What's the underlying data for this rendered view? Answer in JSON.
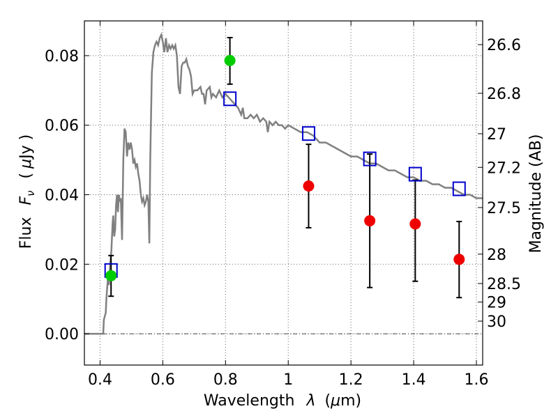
{
  "chart_data": {
    "type": "scatter",
    "title": "",
    "xlabel": {
      "prefix": "Wavelength",
      "symbol": "λ",
      "unit_open": "(",
      "unit_mu": "μ",
      "unit_rest": "m)"
    },
    "ylabel": {
      "prefix": "Flux",
      "symbol": "F",
      "subscript": "ν",
      "unit_open": "(",
      "unit_mu": "μ",
      "unit_rest": "Jy )"
    },
    "y2label": "Magnitude (AB)",
    "xlim": [
      0.35,
      1.62
    ],
    "ylim": [
      -0.009,
      0.09
    ],
    "grid": true,
    "x_ticks": [
      {
        "value": 0.4,
        "label": "0.4"
      },
      {
        "value": 0.6,
        "label": "0.6"
      },
      {
        "value": 0.8,
        "label": "0.8"
      },
      {
        "value": 1.0,
        "label": "1"
      },
      {
        "value": 1.2,
        "label": "1.2"
      },
      {
        "value": 1.4,
        "label": "1.4"
      },
      {
        "value": 1.6,
        "label": "1.6"
      }
    ],
    "y_ticks": [
      {
        "value": 0.0,
        "label": "0.00"
      },
      {
        "value": 0.02,
        "label": "0.02"
      },
      {
        "value": 0.04,
        "label": "0.04"
      },
      {
        "value": 0.06,
        "label": "0.06"
      },
      {
        "value": 0.08,
        "label": "0.08"
      }
    ],
    "mag_ticks": [
      {
        "value": 26.6,
        "label": "26.6"
      },
      {
        "value": 26.8,
        "label": "26.8"
      },
      {
        "value": 27.0,
        "label": "27"
      },
      {
        "value": 27.2,
        "label": "27.2"
      },
      {
        "value": 27.5,
        "label": "27.5"
      },
      {
        "value": 28.0,
        "label": "28"
      },
      {
        "value": 28.5,
        "label": "28.5"
      },
      {
        "value": 29.0,
        "label": "29"
      },
      {
        "value": 30.0,
        "label": "30"
      }
    ],
    "mag_zero_point": 23.9,
    "model_spectrum": {
      "color": "#808080",
      "points": [
        [
          0.35,
          0.0
        ],
        [
          0.41,
          0.0
        ],
        [
          0.412,
          0.004
        ],
        [
          0.415,
          0.005
        ],
        [
          0.418,
          0.006
        ],
        [
          0.42,
          0.01
        ],
        [
          0.425,
          0.016
        ],
        [
          0.428,
          0.014
        ],
        [
          0.432,
          0.02
        ],
        [
          0.436,
          0.024
        ],
        [
          0.44,
          0.032
        ],
        [
          0.442,
          0.034
        ],
        [
          0.445,
          0.028
        ],
        [
          0.448,
          0.03
        ],
        [
          0.451,
          0.037
        ],
        [
          0.454,
          0.04
        ],
        [
          0.457,
          0.035
        ],
        [
          0.46,
          0.04
        ],
        [
          0.463,
          0.038
        ],
        [
          0.466,
          0.039
        ],
        [
          0.47,
          0.027
        ],
        [
          0.474,
          0.05
        ],
        [
          0.478,
          0.059
        ],
        [
          0.482,
          0.058
        ],
        [
          0.486,
          0.051
        ],
        [
          0.49,
          0.055
        ],
        [
          0.494,
          0.053
        ],
        [
          0.498,
          0.055
        ],
        [
          0.502,
          0.053
        ],
        [
          0.506,
          0.049
        ],
        [
          0.51,
          0.05
        ],
        [
          0.514,
          0.048
        ],
        [
          0.518,
          0.049
        ],
        [
          0.522,
          0.046
        ],
        [
          0.526,
          0.044
        ],
        [
          0.53,
          0.04
        ],
        [
          0.534,
          0.038
        ],
        [
          0.538,
          0.039
        ],
        [
          0.542,
          0.037
        ],
        [
          0.546,
          0.038
        ],
        [
          0.55,
          0.04
        ],
        [
          0.554,
          0.038
        ],
        [
          0.557,
          0.026
        ],
        [
          0.56,
          0.05
        ],
        [
          0.565,
          0.075
        ],
        [
          0.57,
          0.081
        ],
        [
          0.575,
          0.083
        ],
        [
          0.58,
          0.084
        ],
        [
          0.585,
          0.083
        ],
        [
          0.59,
          0.085
        ],
        [
          0.595,
          0.086
        ],
        [
          0.6,
          0.084
        ],
        [
          0.605,
          0.081
        ],
        [
          0.61,
          0.085
        ],
        [
          0.615,
          0.081
        ],
        [
          0.62,
          0.083
        ],
        [
          0.625,
          0.082
        ],
        [
          0.63,
          0.083
        ],
        [
          0.635,
          0.082
        ],
        [
          0.64,
          0.083
        ],
        [
          0.645,
          0.08
        ],
        [
          0.65,
          0.071
        ],
        [
          0.655,
          0.069
        ],
        [
          0.66,
          0.077
        ],
        [
          0.665,
          0.078
        ],
        [
          0.67,
          0.078
        ],
        [
          0.675,
          0.079
        ],
        [
          0.68,
          0.077
        ],
        [
          0.685,
          0.076
        ],
        [
          0.69,
          0.074
        ],
        [
          0.695,
          0.069
        ],
        [
          0.7,
          0.07
        ],
        [
          0.71,
          0.07
        ],
        [
          0.72,
          0.071
        ],
        [
          0.725,
          0.069
        ],
        [
          0.73,
          0.069
        ],
        [
          0.735,
          0.066
        ],
        [
          0.74,
          0.07
        ],
        [
          0.75,
          0.071
        ],
        [
          0.755,
          0.068
        ],
        [
          0.76,
          0.069
        ],
        [
          0.77,
          0.068
        ],
        [
          0.78,
          0.07
        ],
        [
          0.79,
          0.068
        ],
        [
          0.8,
          0.069
        ],
        [
          0.81,
          0.068
        ],
        [
          0.82,
          0.067
        ],
        [
          0.83,
          0.066
        ],
        [
          0.84,
          0.065
        ],
        [
          0.85,
          0.063
        ],
        [
          0.855,
          0.065
        ],
        [
          0.86,
          0.062
        ],
        [
          0.87,
          0.062
        ],
        [
          0.88,
          0.063
        ],
        [
          0.89,
          0.062
        ],
        [
          0.9,
          0.063
        ],
        [
          0.91,
          0.061
        ],
        [
          0.92,
          0.062
        ],
        [
          0.93,
          0.061
        ],
        [
          0.935,
          0.058
        ],
        [
          0.94,
          0.061
        ],
        [
          0.95,
          0.06
        ],
        [
          0.96,
          0.061
        ],
        [
          0.97,
          0.06
        ],
        [
          0.98,
          0.06
        ],
        [
          0.99,
          0.059
        ],
        [
          1.0,
          0.06
        ],
        [
          1.02,
          0.059
        ],
        [
          1.04,
          0.058
        ],
        [
          1.06,
          0.058
        ],
        [
          1.08,
          0.057
        ],
        [
          1.1,
          0.055
        ],
        [
          1.12,
          0.055
        ],
        [
          1.14,
          0.054
        ],
        [
          1.16,
          0.053
        ],
        [
          1.18,
          0.052
        ],
        [
          1.2,
          0.051
        ],
        [
          1.22,
          0.051
        ],
        [
          1.24,
          0.05
        ],
        [
          1.26,
          0.049
        ],
        [
          1.28,
          0.049
        ],
        [
          1.3,
          0.048
        ],
        [
          1.32,
          0.047
        ],
        [
          1.34,
          0.047
        ],
        [
          1.36,
          0.046
        ],
        [
          1.38,
          0.045
        ],
        [
          1.4,
          0.045
        ],
        [
          1.42,
          0.044
        ],
        [
          1.44,
          0.044
        ],
        [
          1.46,
          0.043
        ],
        [
          1.48,
          0.043
        ],
        [
          1.5,
          0.042
        ],
        [
          1.52,
          0.042
        ],
        [
          1.54,
          0.041
        ],
        [
          1.56,
          0.04
        ],
        [
          1.58,
          0.04
        ],
        [
          1.6,
          0.039
        ],
        [
          1.62,
          0.039
        ]
      ]
    },
    "series": [
      {
        "marker": "open-square",
        "color": "#0000cc",
        "points": [
          {
            "x": 0.435,
            "y": 0.0182
          },
          {
            "x": 0.814,
            "y": 0.0676
          },
          {
            "x": 1.065,
            "y": 0.0576
          },
          {
            "x": 1.26,
            "y": 0.0503
          },
          {
            "x": 1.405,
            "y": 0.0459
          },
          {
            "x": 1.545,
            "y": 0.0417
          }
        ]
      },
      {
        "marker": "filled-circle",
        "color": "#00cc00",
        "points": [
          {
            "x": 0.435,
            "y": 0.0167,
            "err_low": 0.0108,
            "err_high": 0.0225
          },
          {
            "x": 0.814,
            "y": 0.0786,
            "err_low": 0.0718,
            "err_high": 0.0852
          }
        ]
      },
      {
        "marker": "filled-circle",
        "color": "#ee0000",
        "points": [
          {
            "x": 1.065,
            "y": 0.0425,
            "err_low": 0.0305,
            "err_high": 0.0545
          },
          {
            "x": 1.26,
            "y": 0.0325,
            "err_low": 0.0133,
            "err_high": 0.0517
          },
          {
            "x": 1.405,
            "y": 0.0316,
            "err_low": 0.0151,
            "err_high": 0.0442
          },
          {
            "x": 1.545,
            "y": 0.0214,
            "err_low": 0.0104,
            "err_high": 0.0323
          }
        ]
      }
    ]
  }
}
